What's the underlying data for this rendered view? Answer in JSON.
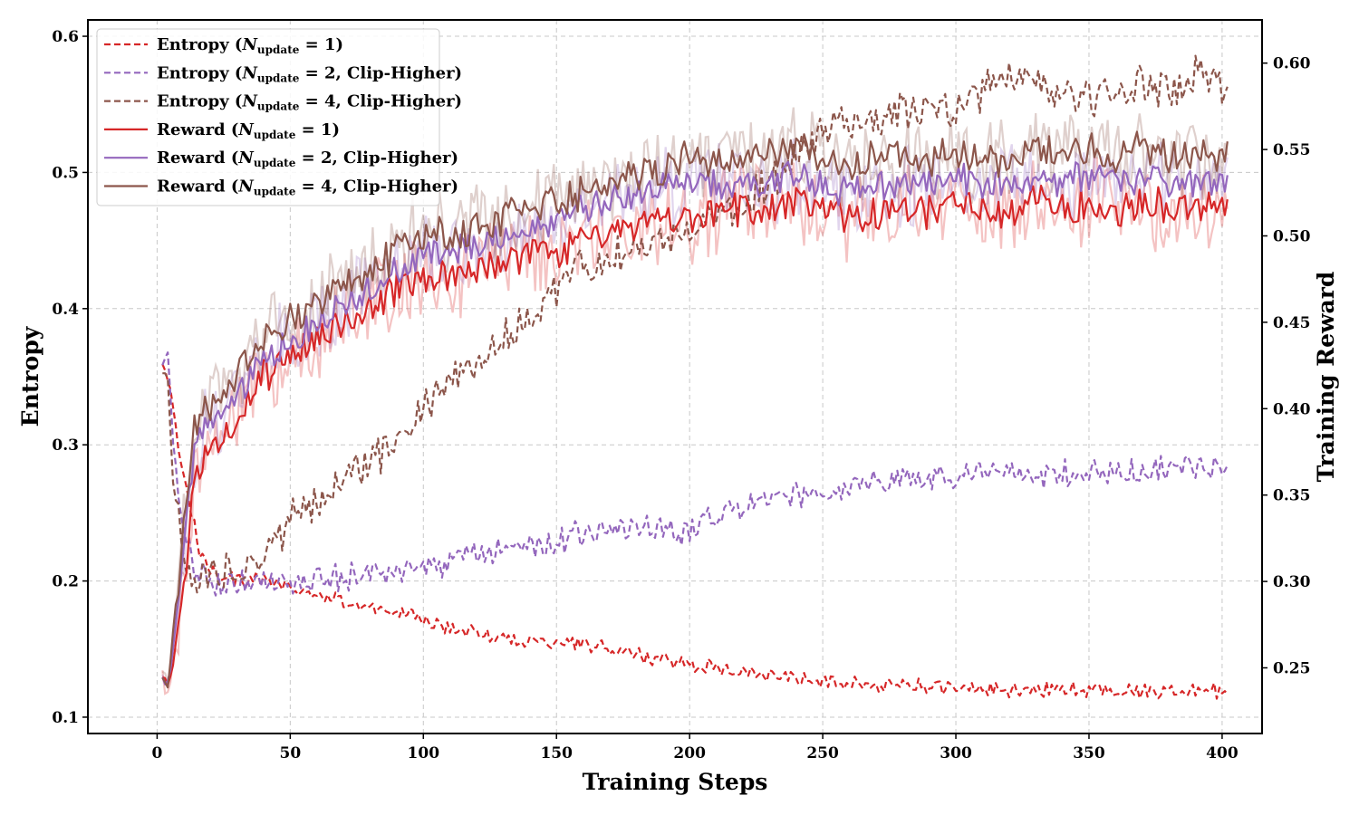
{
  "chart_data": {
    "type": "line",
    "title": "",
    "xlabel": "Training Steps",
    "ylabel_left": "Entropy",
    "ylabel_right": "Training Reward",
    "xlim": [
      -26,
      415
    ],
    "ylim_left": [
      0.088,
      0.612
    ],
    "ylim_right": [
      0.212,
      0.625
    ],
    "x_ticks": [
      0,
      50,
      100,
      150,
      200,
      250,
      300,
      350,
      400
    ],
    "y_ticks_left": [
      0.1,
      0.2,
      0.3,
      0.4,
      0.5,
      0.6
    ],
    "y_ticks_right": [
      0.25,
      0.3,
      0.35,
      0.4,
      0.45,
      0.5,
      0.55,
      0.6
    ],
    "grid": true,
    "legend_position": "top-left",
    "legend": [
      {
        "prefix": "Entropy (",
        "sym": "N",
        "sub": "update",
        "rest": " = 1)",
        "color": "#d62728",
        "dash": true
      },
      {
        "prefix": "Entropy (",
        "sym": "N",
        "sub": "update",
        "rest": " = 2, Clip-Higher)",
        "color": "#9467bd",
        "dash": true
      },
      {
        "prefix": "Entropy (",
        "sym": "N",
        "sub": "update",
        "rest": " = 4, Clip-Higher)",
        "color": "#8c564b",
        "dash": true
      },
      {
        "prefix": "Reward (",
        "sym": "N",
        "sub": "update",
        "rest": " = 1)",
        "color": "#d62728",
        "dash": false
      },
      {
        "prefix": "Reward (",
        "sym": "N",
        "sub": "update",
        "rest": " = 2, Clip-Higher)",
        "color": "#9467bd",
        "dash": false
      },
      {
        "prefix": "Reward (",
        "sym": "N",
        "sub": "update",
        "rest": " = 4, Clip-Higher)",
        "color": "#8c564b",
        "dash": false
      }
    ],
    "series": [
      {
        "name": "Entropy (N_update = 1)",
        "axis": "left",
        "color": "#d62728",
        "style": "dashed",
        "x": [
          2,
          5,
          8,
          12,
          16,
          20,
          30,
          40,
          50,
          60,
          70,
          80,
          90,
          100,
          110,
          120,
          130,
          140,
          150,
          160,
          170,
          180,
          190,
          200,
          210,
          220,
          230,
          240,
          250,
          260,
          270,
          280,
          290,
          300,
          310,
          320,
          330,
          340,
          350,
          360,
          370,
          380,
          390,
          400,
          402
        ],
        "y": [
          0.36,
          0.34,
          0.3,
          0.26,
          0.22,
          0.21,
          0.2,
          0.2,
          0.195,
          0.19,
          0.185,
          0.18,
          0.178,
          0.172,
          0.165,
          0.162,
          0.158,
          0.155,
          0.155,
          0.155,
          0.15,
          0.146,
          0.143,
          0.138,
          0.137,
          0.134,
          0.131,
          0.128,
          0.127,
          0.126,
          0.124,
          0.123,
          0.122,
          0.121,
          0.121,
          0.12,
          0.12,
          0.12,
          0.12,
          0.119,
          0.119,
          0.119,
          0.12,
          0.119,
          0.118
        ]
      },
      {
        "name": "Entropy (N_update = 2, Clip-Higher)",
        "axis": "left",
        "color": "#9467bd",
        "style": "dashed",
        "x": [
          2,
          4,
          6,
          10,
          14,
          20,
          30,
          40,
          50,
          60,
          70,
          80,
          90,
          100,
          110,
          120,
          130,
          140,
          150,
          160,
          170,
          180,
          190,
          200,
          210,
          220,
          230,
          240,
          250,
          260,
          270,
          280,
          290,
          300,
          310,
          320,
          330,
          340,
          350,
          360,
          370,
          380,
          390,
          400,
          402
        ],
        "y": [
          0.36,
          0.37,
          0.3,
          0.24,
          0.21,
          0.2,
          0.2,
          0.202,
          0.2,
          0.2,
          0.203,
          0.205,
          0.205,
          0.207,
          0.213,
          0.218,
          0.222,
          0.226,
          0.23,
          0.234,
          0.238,
          0.24,
          0.238,
          0.235,
          0.247,
          0.254,
          0.26,
          0.263,
          0.266,
          0.27,
          0.272,
          0.275,
          0.275,
          0.275,
          0.278,
          0.278,
          0.278,
          0.279,
          0.28,
          0.278,
          0.28,
          0.282,
          0.283,
          0.282,
          0.282
        ]
      },
      {
        "name": "Entropy (N_update = 4, Clip-Higher)",
        "axis": "left",
        "color": "#8c564b",
        "style": "dashed",
        "x": [
          2,
          4,
          6,
          10,
          14,
          20,
          30,
          40,
          50,
          60,
          70,
          80,
          90,
          100,
          110,
          120,
          130,
          140,
          150,
          160,
          170,
          180,
          190,
          200,
          210,
          220,
          230,
          240,
          250,
          260,
          270,
          280,
          290,
          300,
          310,
          320,
          330,
          340,
          350,
          360,
          370,
          380,
          390,
          400,
          402
        ],
        "y": [
          0.355,
          0.35,
          0.27,
          0.22,
          0.205,
          0.2,
          0.21,
          0.22,
          0.245,
          0.26,
          0.275,
          0.285,
          0.305,
          0.33,
          0.345,
          0.36,
          0.38,
          0.395,
          0.415,
          0.43,
          0.44,
          0.445,
          0.45,
          0.46,
          0.47,
          0.48,
          0.49,
          0.51,
          0.525,
          0.54,
          0.535,
          0.545,
          0.545,
          0.545,
          0.56,
          0.57,
          0.565,
          0.555,
          0.555,
          0.56,
          0.565,
          0.56,
          0.57,
          0.565,
          0.56
        ]
      },
      {
        "name": "Reward (N_update = 1)",
        "axis": "right",
        "color": "#d62728",
        "style": "solid",
        "x": [
          2,
          4,
          6,
          10,
          14,
          18,
          25,
          30,
          40,
          50,
          60,
          70,
          80,
          90,
          100,
          110,
          120,
          130,
          140,
          150,
          160,
          170,
          180,
          190,
          200,
          210,
          220,
          230,
          240,
          250,
          260,
          270,
          280,
          290,
          300,
          310,
          320,
          330,
          340,
          350,
          360,
          370,
          380,
          390,
          400,
          402
        ],
        "y": [
          0.245,
          0.24,
          0.25,
          0.3,
          0.36,
          0.375,
          0.385,
          0.395,
          0.42,
          0.43,
          0.44,
          0.45,
          0.46,
          0.47,
          0.475,
          0.475,
          0.48,
          0.485,
          0.49,
          0.49,
          0.495,
          0.5,
          0.505,
          0.51,
          0.51,
          0.515,
          0.515,
          0.515,
          0.52,
          0.515,
          0.51,
          0.515,
          0.515,
          0.515,
          0.52,
          0.515,
          0.515,
          0.52,
          0.515,
          0.52,
          0.515,
          0.52,
          0.515,
          0.515,
          0.515,
          0.52
        ]
      },
      {
        "name": "Reward (N_update = 2, Clip-Higher)",
        "axis": "right",
        "color": "#9467bd",
        "style": "solid",
        "x": [
          2,
          4,
          6,
          10,
          14,
          18,
          25,
          30,
          40,
          50,
          60,
          70,
          80,
          90,
          100,
          110,
          120,
          130,
          140,
          150,
          160,
          170,
          180,
          190,
          200,
          210,
          220,
          230,
          240,
          250,
          260,
          270,
          280,
          290,
          300,
          310,
          320,
          330,
          340,
          350,
          360,
          370,
          380,
          390,
          400,
          402
        ],
        "y": [
          0.245,
          0.24,
          0.26,
          0.32,
          0.375,
          0.39,
          0.4,
          0.41,
          0.43,
          0.44,
          0.45,
          0.46,
          0.47,
          0.48,
          0.49,
          0.49,
          0.495,
          0.5,
          0.505,
          0.51,
          0.515,
          0.52,
          0.525,
          0.53,
          0.53,
          0.53,
          0.53,
          0.53,
          0.535,
          0.53,
          0.525,
          0.53,
          0.53,
          0.53,
          0.535,
          0.53,
          0.53,
          0.535,
          0.53,
          0.535,
          0.53,
          0.535,
          0.53,
          0.53,
          0.53,
          0.535
        ]
      },
      {
        "name": "Reward (N_update = 4, Clip-Higher)",
        "axis": "right",
        "color": "#8c564b",
        "style": "solid",
        "x": [
          2,
          4,
          6,
          10,
          14,
          18,
          25,
          30,
          40,
          50,
          60,
          70,
          80,
          90,
          100,
          110,
          120,
          130,
          140,
          150,
          160,
          170,
          180,
          190,
          200,
          210,
          220,
          230,
          240,
          250,
          260,
          270,
          280,
          290,
          300,
          310,
          320,
          330,
          340,
          350,
          360,
          370,
          380,
          390,
          400,
          402
        ],
        "y": [
          0.245,
          0.24,
          0.27,
          0.33,
          0.385,
          0.4,
          0.41,
          0.42,
          0.44,
          0.45,
          0.46,
          0.47,
          0.48,
          0.49,
          0.5,
          0.5,
          0.505,
          0.51,
          0.515,
          0.52,
          0.525,
          0.53,
          0.535,
          0.54,
          0.545,
          0.545,
          0.545,
          0.545,
          0.55,
          0.545,
          0.54,
          0.545,
          0.545,
          0.545,
          0.55,
          0.545,
          0.545,
          0.55,
          0.545,
          0.55,
          0.545,
          0.55,
          0.545,
          0.545,
          0.545,
          0.55
        ]
      }
    ]
  }
}
